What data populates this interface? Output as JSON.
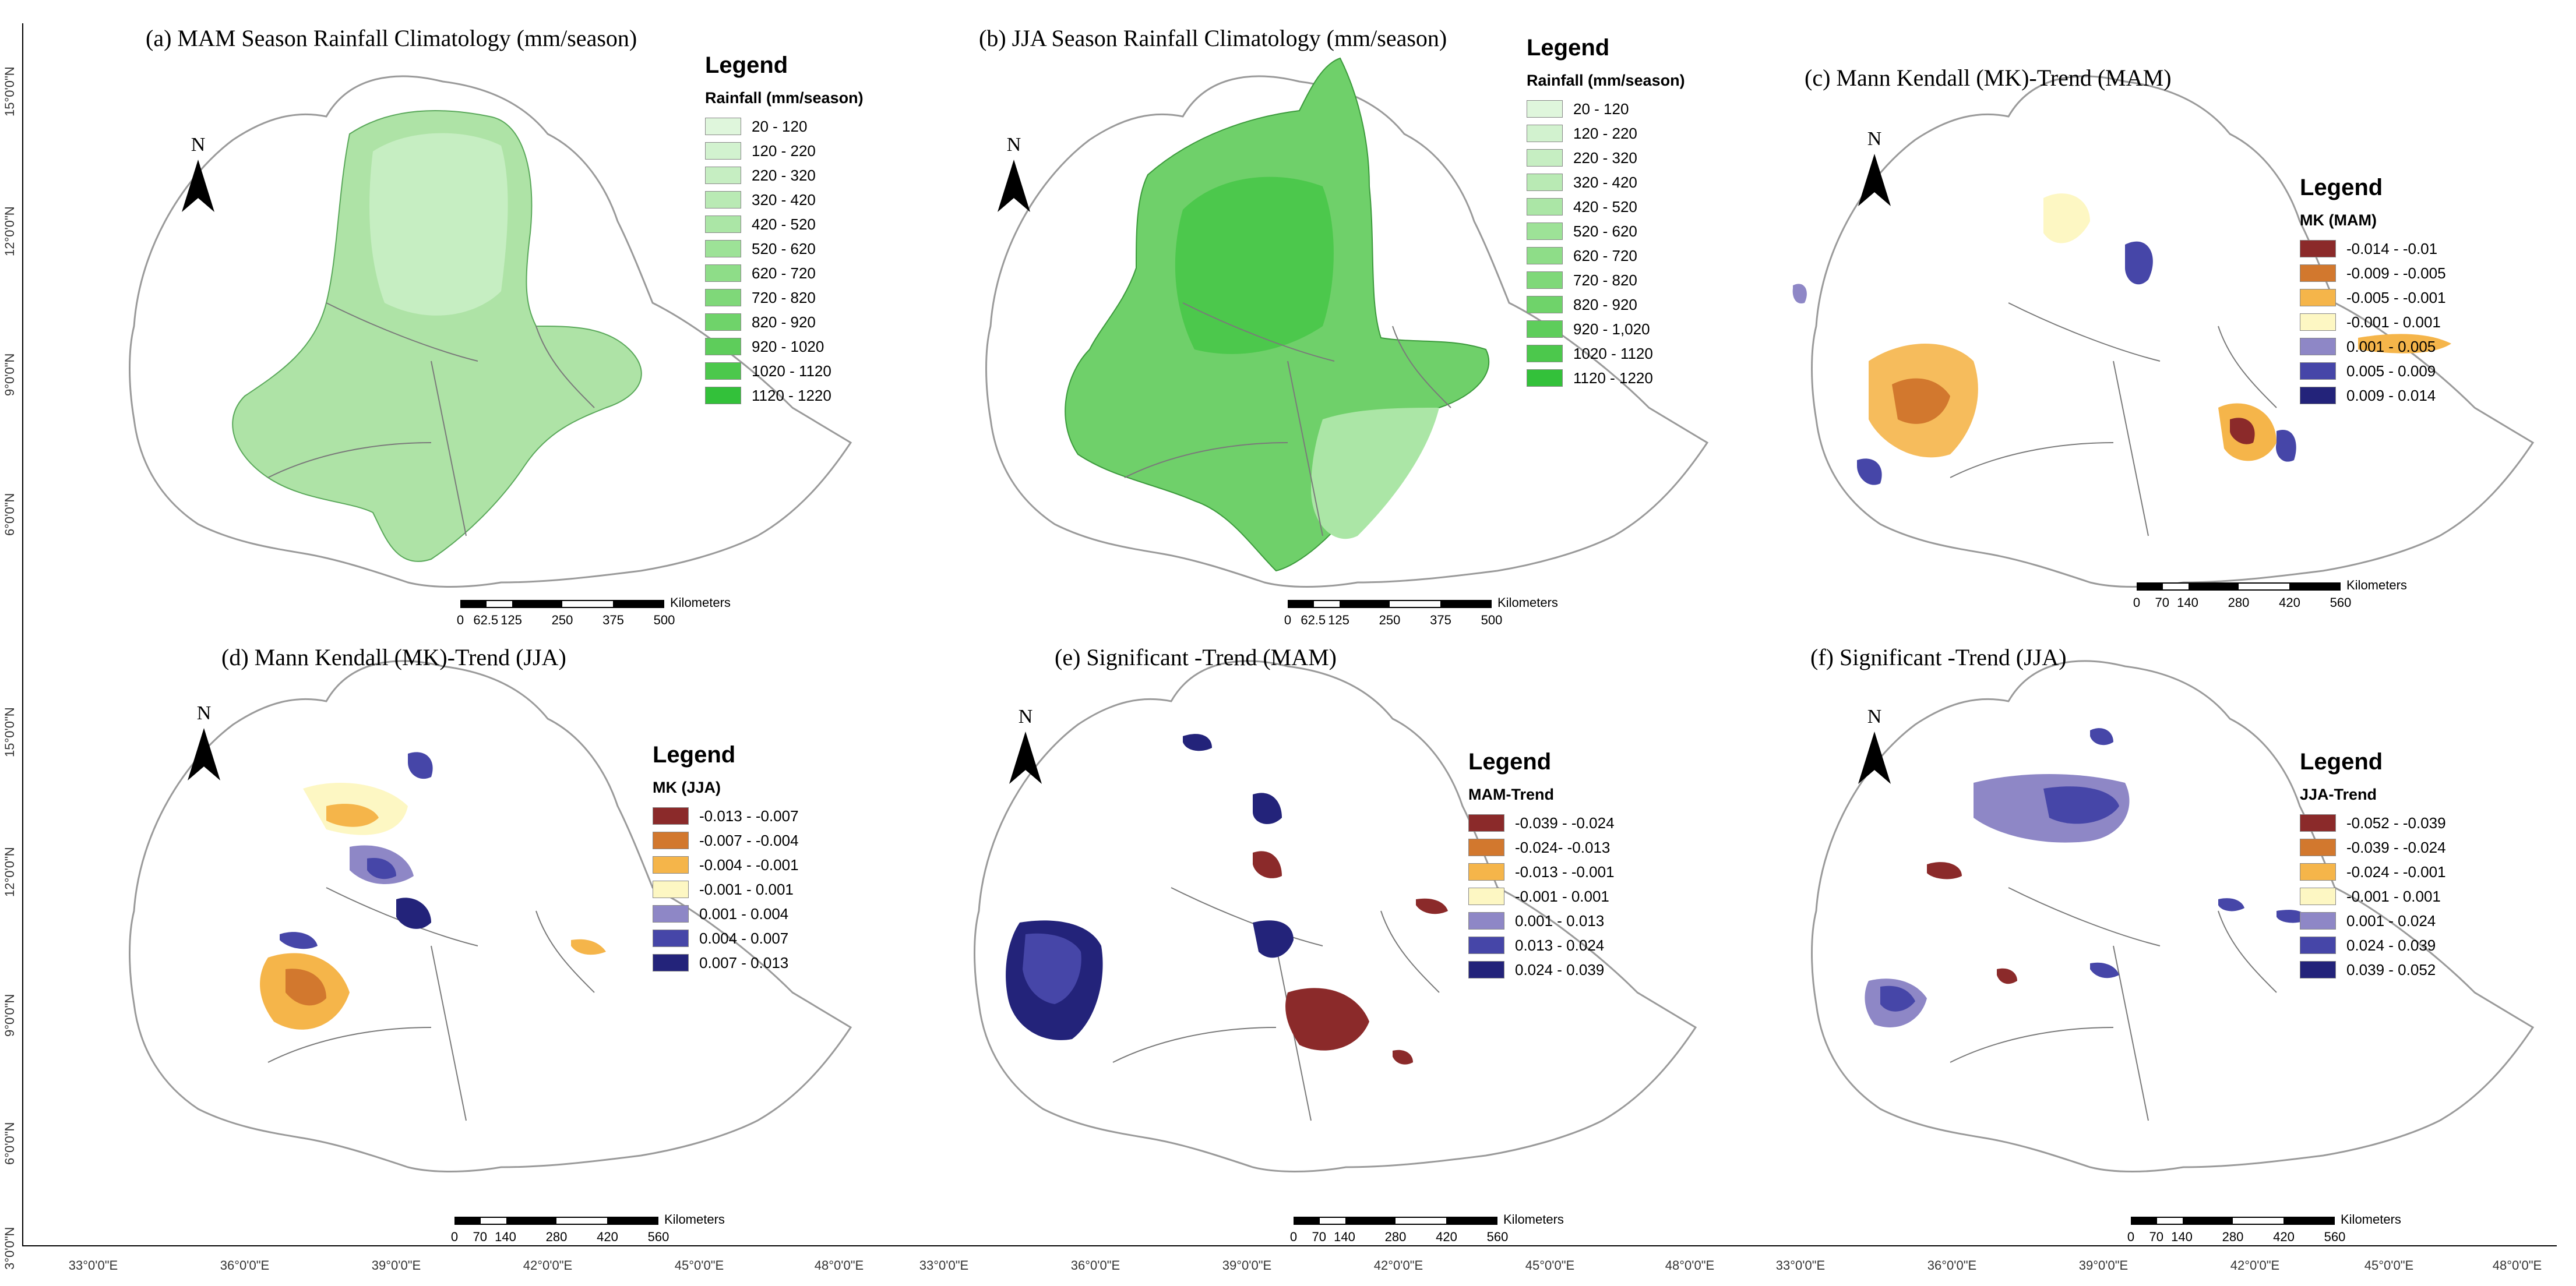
{
  "panels": [
    {
      "id": "a",
      "title": "(a) MAM Season Rainfall Climatology (mm/season)",
      "legend_title": "Legend",
      "legend_subtitle": "Rainfall (mm/season)",
      "classes": [
        "20 - 120",
        "120 - 220",
        "220 - 320",
        "320 - 420",
        "420 - 520",
        "520 - 620",
        "620 - 720",
        "720 - 820",
        "820 - 920",
        "920 - 1020",
        "1020 - 1120",
        "1120 - 1220"
      ],
      "colors": [
        "#dff6dc",
        "#d2f2cf",
        "#c6eec2",
        "#b9eab4",
        "#abe6a6",
        "#9de297",
        "#8edd88",
        "#7fd879",
        "#6fd36a",
        "#5ecd5b",
        "#4cc84c",
        "#33c13a"
      ],
      "fill": "#aee3a6",
      "scale_ticks": [
        "0",
        "62.5",
        "125",
        "250",
        "375",
        "500"
      ],
      "scale_unit": "Kilometers"
    },
    {
      "id": "b",
      "title": "(b) JJA Season Rainfall Climatology (mm/season)",
      "legend_title": "Legend",
      "legend_subtitle": "Rainfall (mm/season)",
      "classes": [
        "20 - 120",
        "120 - 220",
        "220 - 320",
        "320 - 420",
        "420 - 520",
        "520 - 620",
        "620 - 720",
        "720 - 820",
        "820 - 920",
        "920 - 1,020",
        "1020 - 1120",
        "1120 - 1220"
      ],
      "colors": [
        "#dff6dc",
        "#d2f2cf",
        "#c6eec2",
        "#b9eab4",
        "#abe6a6",
        "#9de297",
        "#8edd88",
        "#7fd879",
        "#6fd36a",
        "#5ecd5b",
        "#4cc84c",
        "#33c13a"
      ],
      "fill": "#6fd06a",
      "scale_ticks": [
        "0",
        "62.5",
        "125",
        "250",
        "375",
        "500"
      ],
      "scale_unit": "Kilometers"
    },
    {
      "id": "c",
      "title": "(c) Mann Kendall (MK)-Trend (MAM)",
      "legend_title": "Legend",
      "legend_subtitle": "MK (MAM)",
      "classes": [
        "-0.014 - -0.01",
        "-0.009 - -0.005",
        "-0.005 - -0.001",
        "-0.001 - 0.001",
        "0.001 - 0.005",
        "0.005 - 0.009",
        "0.009 - 0.014"
      ],
      "colors": [
        "#8b2a2a",
        "#d2782e",
        "#f5b54a",
        "#fdf7c3",
        "#8e87c6",
        "#4646a8",
        "#23237a"
      ],
      "scale_ticks": [
        "0",
        "70",
        "140",
        "280",
        "420",
        "560"
      ],
      "scale_unit": "Kilometers"
    },
    {
      "id": "d",
      "title": "(d) Mann Kendall (MK)-Trend (JJA)",
      "legend_title": "Legend",
      "legend_subtitle": "MK (JJA)",
      "classes": [
        "-0.013 - -0.007",
        "-0.007 - -0.004",
        "-0.004 - -0.001",
        "-0.001 - 0.001",
        "0.001 - 0.004",
        "0.004 - 0.007",
        "0.007 - 0.013"
      ],
      "colors": [
        "#8b2a2a",
        "#d2782e",
        "#f5b54a",
        "#fdf7c3",
        "#8e87c6",
        "#4646a8",
        "#23237a"
      ],
      "scale_ticks": [
        "0",
        "70",
        "140",
        "280",
        "420",
        "560"
      ],
      "scale_unit": "Kilometers"
    },
    {
      "id": "e",
      "title": "(e) Significant -Trend (MAM)",
      "legend_title": "Legend",
      "legend_subtitle": "MAM-Trend",
      "classes": [
        "-0.039 - -0.024",
        "-0.024- -0.013",
        "-0.013 - -0.001",
        "-0.001 - 0.001",
        "0.001 - 0.013",
        "0.013 - 0.024",
        "0.024 - 0.039"
      ],
      "colors": [
        "#8b2a2a",
        "#d2782e",
        "#f5b54a",
        "#fdf7c3",
        "#8e87c6",
        "#4646a8",
        "#23237a"
      ],
      "scale_ticks": [
        "0",
        "70",
        "140",
        "280",
        "420",
        "560"
      ],
      "scale_unit": "Kilometers"
    },
    {
      "id": "f",
      "title": "(f) Significant -Trend (JJA)",
      "legend_title": "Legend",
      "legend_subtitle": "JJA-Trend",
      "classes": [
        "-0.052 - -0.039",
        "-0.039 - -0.024",
        "-0.024 - -0.001",
        "-0.001 - 0.001",
        "0.001 - 0.024",
        "0.024 - 0.039",
        "0.039 - 0.052"
      ],
      "colors": [
        "#8b2a2a",
        "#d2782e",
        "#f5b54a",
        "#fdf7c3",
        "#8e87c6",
        "#4646a8",
        "#23237a"
      ],
      "scale_ticks": [
        "0",
        "70",
        "140",
        "280",
        "420",
        "560"
      ],
      "scale_unit": "Kilometers"
    }
  ],
  "north_label": "N",
  "lat_labels": [
    "15°0'0\"N",
    "12°0'0\"N",
    "9°0'0\"N",
    "6°0'0\"N",
    "3°0'0\"N"
  ],
  "lon_labels": [
    "33°0'0\"E",
    "36°0'0\"E",
    "39°0'0\"E",
    "42°0'0\"E",
    "45°0'0\"E",
    "48°0'0\"E"
  ],
  "lon_labels_b": [
    "33°0'0\"E",
    "36°0'0\"E",
    "39°0'0\"E",
    "42°0'0\"E",
    "45°0'0\"E",
    "48°0'0\"E"
  ],
  "lon_labels_c": [
    "33°0'0\"E",
    "36°0'0\"E",
    "39°0'0\"E",
    "42°0'0\"E",
    "45°0'0\"E",
    "48°0'0\"E"
  ]
}
